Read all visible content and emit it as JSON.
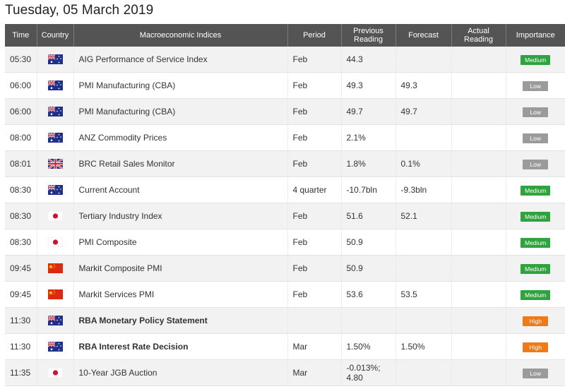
{
  "page_title": "Tuesday, 05 March 2019",
  "columns": {
    "time": "Time",
    "country": "Country",
    "indices": "Macroeconomic Indices",
    "period": "Period",
    "previous_line1": "Previous",
    "previous_line2": "Reading",
    "forecast": "Forecast",
    "actual_line1": "Actual",
    "actual_line2": "Reading",
    "importance": "Importance"
  },
  "rows": [
    {
      "time": "05:30",
      "flag": "australia-flag-icon",
      "indicator": "AIG Performance of Service Index",
      "period": "Feb",
      "prev": "44.3",
      "prev2": "",
      "forecast": "",
      "actual": "",
      "importance": "Medium",
      "bold": false
    },
    {
      "time": "06:00",
      "flag": "australia-flag-icon",
      "indicator": "PMI Manufacturing (CBA)",
      "period": "Feb",
      "prev": "49.3",
      "prev2": "",
      "forecast": "49.3",
      "actual": "",
      "importance": "Low",
      "bold": false
    },
    {
      "time": "06:00",
      "flag": "australia-flag-icon",
      "indicator": "PMI Manufacturing (CBA)",
      "period": "Feb",
      "prev": "49.7",
      "prev2": "",
      "forecast": "49.7",
      "actual": "",
      "importance": "Low",
      "bold": false
    },
    {
      "time": "08:00",
      "flag": "australia-flag-icon",
      "indicator": "ANZ Commodity Prices",
      "period": "Feb",
      "prev": "2.1%",
      "prev2": "",
      "forecast": "",
      "actual": "",
      "importance": "Low",
      "bold": false
    },
    {
      "time": "08:01",
      "flag": "uk-flag-icon",
      "indicator": "BRC Retail Sales Monitor",
      "period": "Feb",
      "prev": "1.8%",
      "prev2": "",
      "forecast": "0.1%",
      "actual": "",
      "importance": "Low",
      "bold": false
    },
    {
      "time": "08:30",
      "flag": "australia-flag-icon",
      "indicator": "Current Account",
      "period": "4 quarter",
      "prev": "-10.7bln",
      "prev2": "",
      "forecast": "-9.3bln",
      "actual": "",
      "importance": "Medium",
      "bold": false
    },
    {
      "time": "08:30",
      "flag": "japan-flag-icon",
      "indicator": "Tertiary Industry Index",
      "period": "Feb",
      "prev": "51.6",
      "prev2": "",
      "forecast": "52.1",
      "actual": "",
      "importance": "Medium",
      "bold": false
    },
    {
      "time": "08:30",
      "flag": "japan-flag-icon",
      "indicator": "PMI Composite",
      "period": "Feb",
      "prev": "50.9",
      "prev2": "",
      "forecast": "",
      "actual": "",
      "importance": "Medium",
      "bold": false
    },
    {
      "time": "09:45",
      "flag": "china-flag-icon",
      "indicator": "Markit Composite PMI",
      "period": "Feb",
      "prev": "50.9",
      "prev2": "",
      "forecast": "",
      "actual": "",
      "importance": "Medium",
      "bold": false
    },
    {
      "time": "09:45",
      "flag": "china-flag-icon",
      "indicator": "Markit Services PMI",
      "period": "Feb",
      "prev": "53.6",
      "prev2": "",
      "forecast": "53.5",
      "actual": "",
      "importance": "Medium",
      "bold": false
    },
    {
      "time": "11:30",
      "flag": "australia-flag-icon",
      "indicator": "RBA Monetary Policy Statement",
      "period": "",
      "prev": "",
      "prev2": "",
      "forecast": "",
      "actual": "",
      "importance": "High",
      "bold": true
    },
    {
      "time": "11:30",
      "flag": "australia-flag-icon",
      "indicator": "RBA Interest Rate Decision",
      "period": "Mar",
      "prev": "1.50%",
      "prev2": "",
      "forecast": "1.50%",
      "actual": "",
      "importance": "High",
      "bold": true
    },
    {
      "time": "11:35",
      "flag": "japan-flag-icon",
      "indicator": "10-Year JGB Auction",
      "period": "Mar",
      "prev": "-0.013%;",
      "prev2": "4.80",
      "forecast": "",
      "actual": "",
      "importance": "Low",
      "bold": false
    }
  ],
  "colors": {
    "header_bg": "#545454",
    "row_alt": "#f2f2f2",
    "low": "#9b9b9b",
    "medium": "#2fa43e",
    "high": "#ef7a1a"
  }
}
